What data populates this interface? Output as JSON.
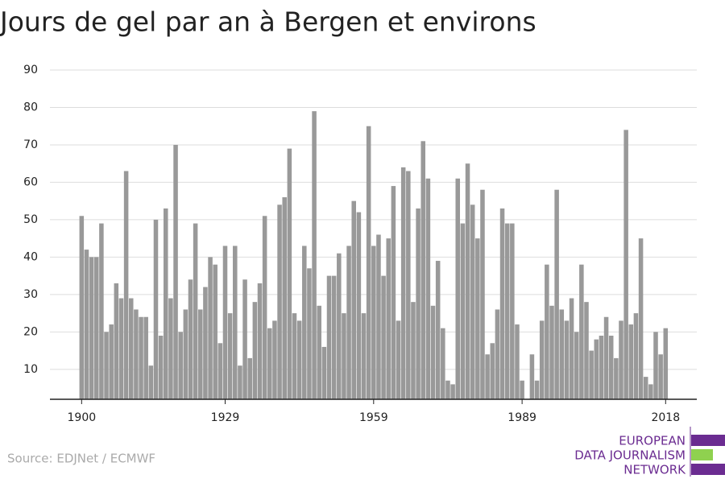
{
  "chart_data": {
    "type": "bar",
    "title": "Jours de gel par an à Bergen et environs",
    "source": "Source: EDJNet / ECMWF",
    "logo": [
      "EUROPEAN",
      "DATA JOURNALISM",
      "NETWORK"
    ],
    "color": "#999999",
    "x": [
      1900,
      1901,
      1902,
      1903,
      1904,
      1905,
      1906,
      1907,
      1908,
      1909,
      1910,
      1911,
      1912,
      1913,
      1914,
      1915,
      1916,
      1917,
      1918,
      1919,
      1920,
      1921,
      1922,
      1923,
      1924,
      1925,
      1926,
      1927,
      1928,
      1929,
      1930,
      1931,
      1932,
      1933,
      1934,
      1935,
      1936,
      1937,
      1938,
      1939,
      1940,
      1941,
      1942,
      1943,
      1944,
      1945,
      1946,
      1947,
      1948,
      1949,
      1950,
      1951,
      1952,
      1953,
      1954,
      1955,
      1956,
      1957,
      1958,
      1959,
      1960,
      1961,
      1962,
      1963,
      1964,
      1965,
      1966,
      1967,
      1968,
      1969,
      1970,
      1971,
      1972,
      1973,
      1974,
      1975,
      1976,
      1977,
      1978,
      1979,
      1980,
      1981,
      1982,
      1983,
      1984,
      1985,
      1986,
      1987,
      1988,
      1989,
      1990,
      1991,
      1992,
      1993,
      1994,
      1995,
      1996,
      1997,
      1998,
      1999,
      2000,
      2001,
      2002,
      2003,
      2004,
      2005,
      2006,
      2007,
      2008,
      2009,
      2010,
      2011,
      2012,
      2013,
      2014,
      2015,
      2016,
      2017,
      2018
    ],
    "values": [
      51,
      42,
      40,
      40,
      49,
      20,
      22,
      33,
      29,
      63,
      29,
      26,
      24,
      24,
      11,
      50,
      19,
      53,
      29,
      70,
      20,
      26,
      34,
      49,
      26,
      32,
      40,
      38,
      17,
      43,
      25,
      43,
      11,
      34,
      13,
      28,
      33,
      51,
      21,
      23,
      54,
      56,
      69,
      25,
      23,
      43,
      37,
      79,
      27,
      16,
      35,
      35,
      41,
      25,
      43,
      55,
      52,
      25,
      75,
      43,
      46,
      35,
      45,
      59,
      23,
      64,
      63,
      28,
      53,
      71,
      61,
      27,
      39,
      21,
      7,
      6,
      61,
      49,
      65,
      54,
      45,
      58,
      14,
      17,
      26,
      53,
      49,
      49,
      22,
      7,
      null,
      14,
      7,
      23,
      38,
      27,
      58,
      26,
      23,
      29,
      20,
      38,
      28,
      15,
      18,
      19,
      24,
      19,
      13,
      23,
      74,
      22,
      25,
      45,
      8,
      6,
      20,
      14,
      21
    ],
    "xlim": [
      1893.6,
      2024.3
    ],
    "xticks": [
      1900,
      1929,
      1959,
      1989,
      2018
    ],
    "ylim": [
      2,
      90
    ],
    "yticks": [
      10,
      20,
      30,
      40,
      50,
      60,
      70,
      80,
      90
    ],
    "grid": true
  }
}
